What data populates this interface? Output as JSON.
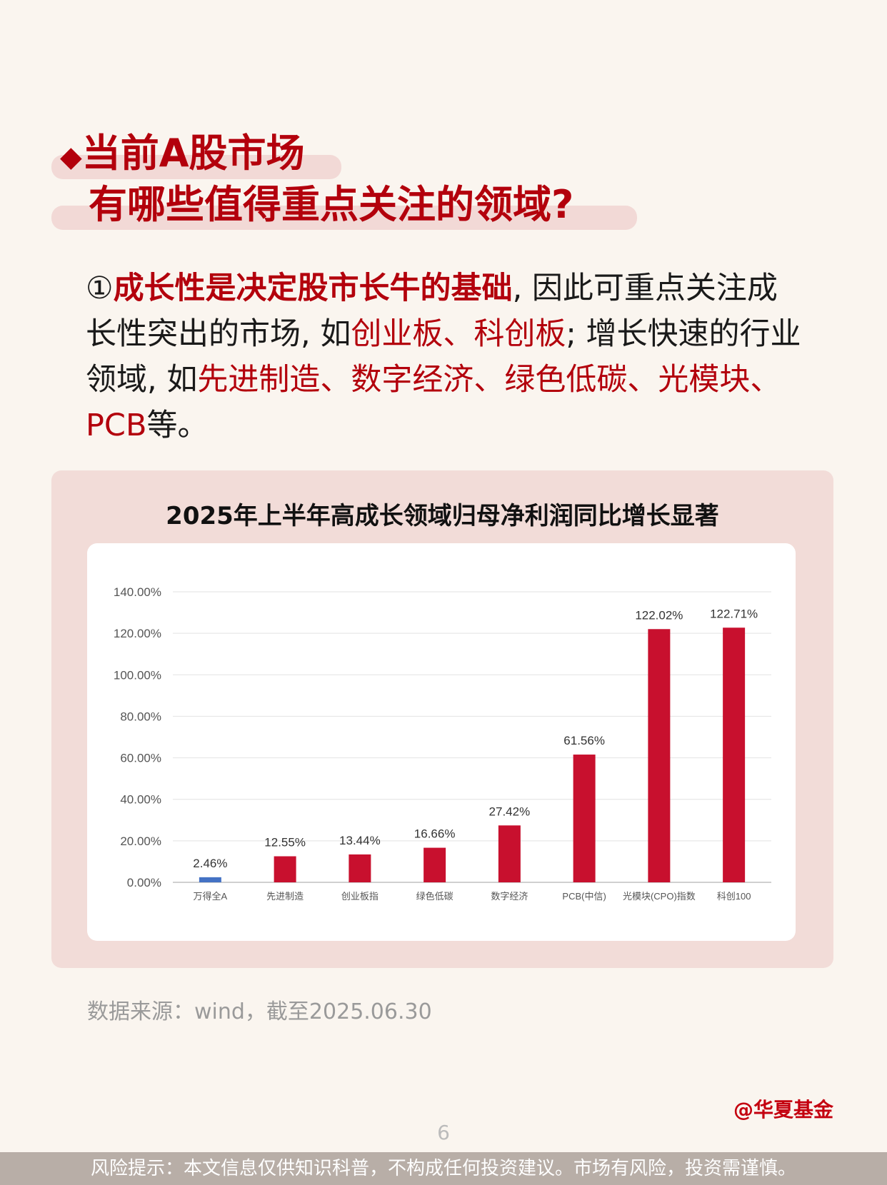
{
  "heading": {
    "marker": "◆",
    "line1": "当前A股市场",
    "line2": "有哪些值得重点关注的领域?"
  },
  "body": {
    "num": "①",
    "lead": "成长性是决定股市长牛的基础",
    "t1": ", 因此可重点关注成长性突出的市场, 如",
    "r1": "创业板、科创板",
    "t2": "; 增长快速的行业领域, 如",
    "r2": "先进制造、数字经济、绿色低碳、光模块、PCB",
    "t3": "等。"
  },
  "chart_data": {
    "type": "bar",
    "title": "2025年上半年高成长领域归母净利润同比增长显著",
    "categories": [
      "万得全A",
      "先进制造",
      "创业板指",
      "绿色低碳",
      "数字经济",
      "PCB(中信)",
      "光模块(CPO)指数",
      "科创100"
    ],
    "values": [
      2.46,
      12.55,
      13.44,
      16.66,
      27.42,
      61.56,
      122.02,
      122.71
    ],
    "data_labels": [
      "2.46%",
      "12.55%",
      "13.44%",
      "16.66%",
      "27.42%",
      "61.56%",
      "122.02%",
      "122.71%"
    ],
    "yticks": [
      "0.00%",
      "20.00%",
      "40.00%",
      "60.00%",
      "80.00%",
      "100.00%",
      "120.00%",
      "140.00%"
    ],
    "ylim": [
      0,
      140
    ],
    "grid": true,
    "colors": {
      "benchmark": "#4472c4",
      "bars": "#c8102e"
    }
  },
  "source": "数据来源：wind，截至2025.06.30",
  "brand": "@华夏基金",
  "page_number": "6",
  "footer": "风险提示：本文信息仅供知识科普，不构成任何投资建议。市场有风险，投资需谨慎。"
}
